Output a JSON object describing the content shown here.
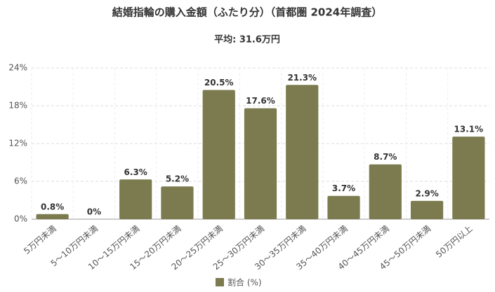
{
  "chart_data": {
    "type": "bar",
    "title": "結婚指輪の購入金額（ふたり分）（首都圏 2024年調査）",
    "subtitle": "平均: 31.6万円",
    "categories": [
      "5万円未満",
      "5～10万円未満",
      "10～15万円未満",
      "15～20万円未満",
      "20～25万円未満",
      "25～30万円未満",
      "30～35万円未満",
      "35～40万円未満",
      "40～45万円未満",
      "45～50万円未満",
      "50万円以上"
    ],
    "series": [
      {
        "name": "割合 (%)",
        "color": "#7b7b4f",
        "values": [
          0.8,
          0,
          6.3,
          5.2,
          20.5,
          17.6,
          21.3,
          3.7,
          8.7,
          2.9,
          13.1
        ],
        "value_labels": [
          "0.8%",
          "0%",
          "6.3%",
          "5.2%",
          "20.5%",
          "17.6%",
          "21.3%",
          "3.7%",
          "8.7%",
          "2.9%",
          "13.1%"
        ]
      }
    ],
    "ylim": [
      0,
      24
    ],
    "yticks": [
      {
        "value": 0,
        "label": "0%"
      },
      {
        "value": 6,
        "label": "6%"
      },
      {
        "value": 12,
        "label": "12%"
      },
      {
        "value": 18,
        "label": "18%"
      },
      {
        "value": 24,
        "label": "24%"
      }
    ],
    "grid": true,
    "legend": "bottom"
  }
}
